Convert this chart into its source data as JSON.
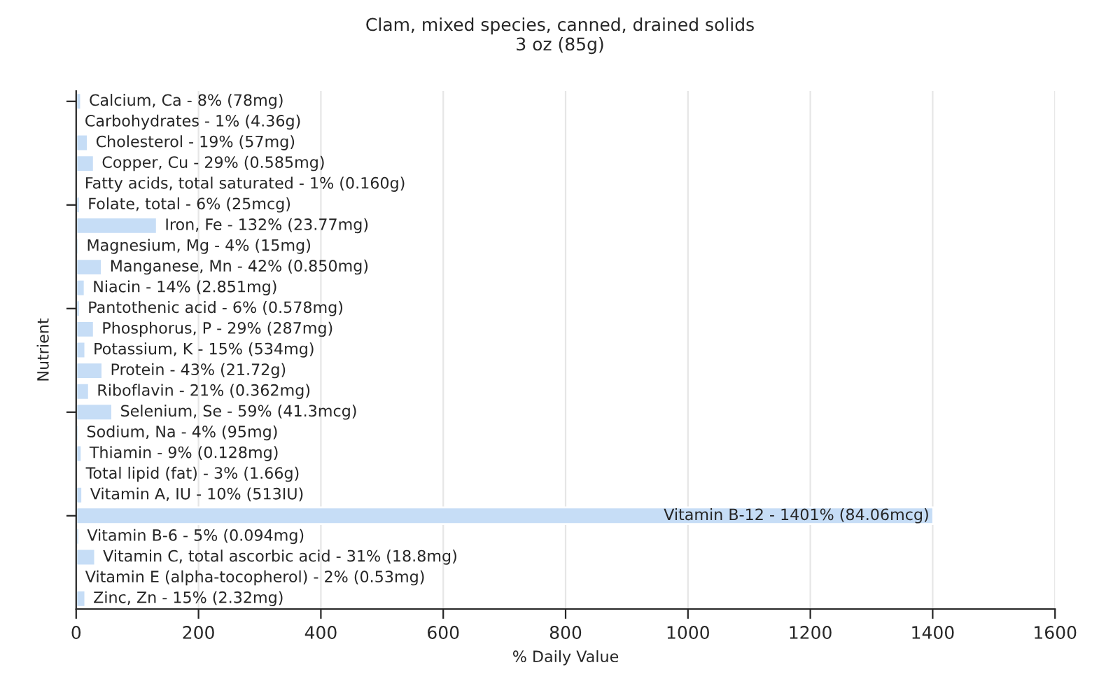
{
  "chart_data": {
    "type": "bar",
    "orientation": "horizontal",
    "title": "Clam, mixed species, canned, drained solids",
    "subtitle": "3 oz (85g)",
    "xlabel": "% Daily Value",
    "ylabel": "Nutrient",
    "categories": [
      "Calcium, Ca - 8% (78mg)",
      "Carbohydrates - 1% (4.36g)",
      "Cholesterol - 19% (57mg)",
      "Copper, Cu - 29% (0.585mg)",
      "Fatty acids, total saturated - 1% (0.160g)",
      "Folate, total - 6% (25mcg)",
      "Iron, Fe - 132% (23.77mg)",
      "Magnesium, Mg - 4% (15mg)",
      "Manganese, Mn - 42% (0.850mg)",
      "Niacin - 14% (2.851mg)",
      "Pantothenic acid - 6% (0.578mg)",
      "Phosphorus, P - 29% (287mg)",
      "Potassium, K - 15% (534mg)",
      "Protein - 43% (21.72g)",
      "Riboflavin - 21% (0.362mg)",
      "Selenium, Se - 59% (41.3mcg)",
      "Sodium, Na - 4% (95mg)",
      "Thiamin - 9% (0.128mg)",
      "Total lipid (fat) - 3% (1.66g)",
      "Vitamin A, IU - 10% (513IU)",
      "Vitamin B-12 - 1401% (84.06mcg)",
      "Vitamin B-6 - 5% (0.094mg)",
      "Vitamin C, total ascorbic acid - 31% (18.8mg)",
      "Vitamin E (alpha-tocopherol) - 2% (0.53mg)",
      "Zinc, Zn - 15% (2.32mg)"
    ],
    "values": [
      8,
      1,
      19,
      29,
      1,
      6,
      132,
      4,
      42,
      14,
      6,
      29,
      15,
      43,
      21,
      59,
      4,
      9,
      3,
      10,
      1401,
      5,
      31,
      2,
      15
    ],
    "color": "#c6ddf6",
    "xlim": [
      0,
      1600
    ],
    "xticks": [
      0,
      200,
      400,
      600,
      800,
      1000,
      1200,
      1400,
      1600
    ],
    "grid": "x"
  }
}
